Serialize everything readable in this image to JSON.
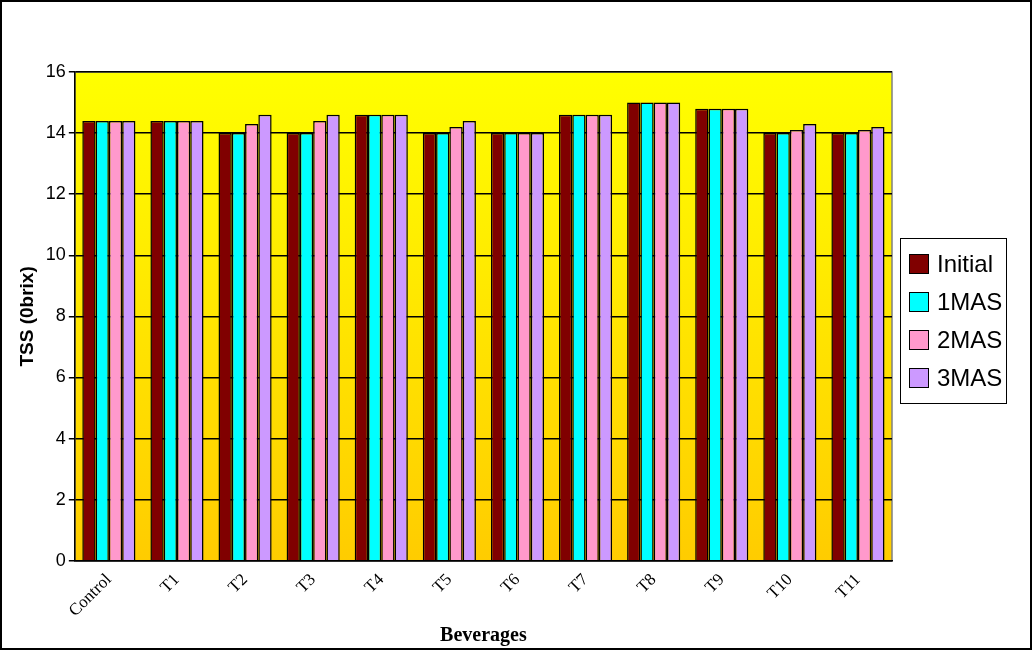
{
  "chart_data": {
    "type": "bar",
    "xlabel": "Beverages",
    "ylabel": "TSS (0brix)",
    "categories": [
      "Control",
      "T1",
      "T2",
      "T3",
      "T4",
      "T5",
      "T6",
      "T7",
      "T8",
      "T9",
      "T10",
      "T11"
    ],
    "series": [
      {
        "name": "Initial",
        "color": "#800000",
        "values": [
          14.4,
          14.4,
          14,
          14,
          14.6,
          14,
          14,
          14.6,
          15,
          14.8,
          14,
          14
        ]
      },
      {
        "name": "1MAS",
        "color": "#00ffff",
        "values": [
          14.4,
          14.4,
          14,
          14,
          14.6,
          14,
          14,
          14.6,
          15,
          14.8,
          14,
          14
        ]
      },
      {
        "name": "2MAS",
        "color": "#ff99cc",
        "values": [
          14.4,
          14.4,
          14.3,
          14.4,
          14.6,
          14.2,
          14,
          14.6,
          15,
          14.8,
          14.1,
          14.1
        ]
      },
      {
        "name": "3MAS",
        "color": "#cc99ff",
        "values": [
          14.4,
          14.4,
          14.6,
          14.6,
          14.6,
          14.4,
          14,
          14.6,
          15,
          14.8,
          14.3,
          14.2
        ]
      }
    ],
    "ylim": [
      0,
      16
    ],
    "yticks": [
      0,
      2,
      4,
      6,
      8,
      10,
      12,
      14,
      16
    ],
    "grid": "y",
    "legend": "right"
  }
}
